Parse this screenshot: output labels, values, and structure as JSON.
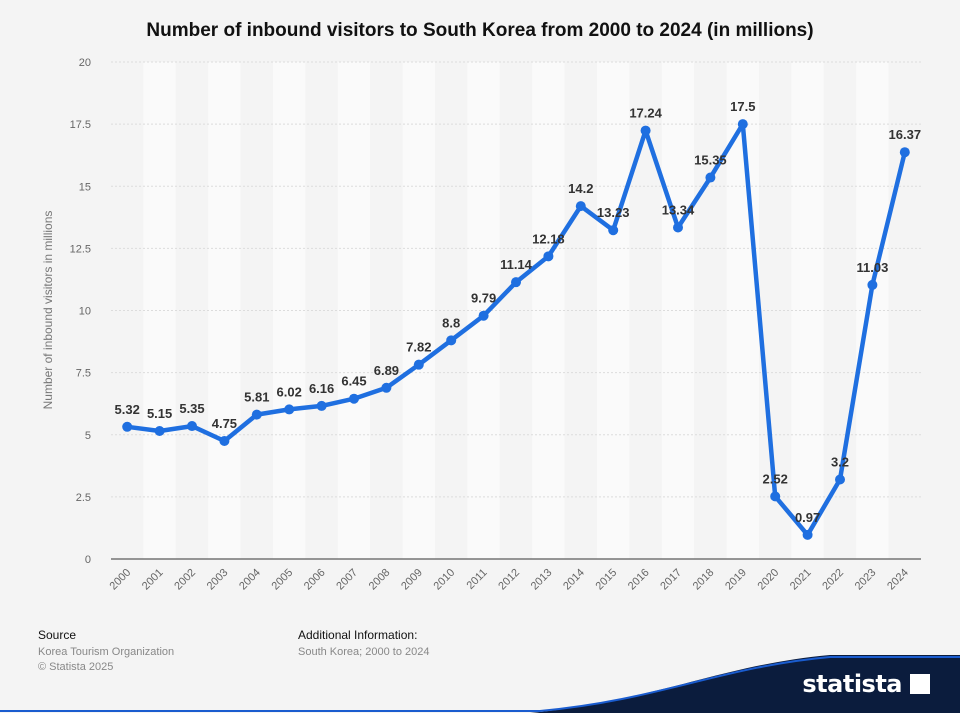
{
  "colors": {
    "line": "#1f6fe0",
    "navy": "#0b1c3d",
    "blue_edge": "#1a5ccf"
  },
  "title": "Number of inbound visitors to South Korea from 2000 to 2024 (in millions)",
  "footer": {
    "source_heading": "Source",
    "source_line1": "Korea Tourism Organization",
    "source_line2": "© Statista 2025",
    "info_heading": "Additional Information:",
    "info_line1": "South Korea; 2000 to 2024"
  },
  "logo": {
    "text": "statista"
  },
  "chart_data": {
    "type": "line",
    "ylabel": "Number of inbound visitors in millions",
    "ylim": [
      0,
      20
    ],
    "yticks": [
      "0",
      "2.5",
      "5",
      "7.5",
      "10",
      "12.5",
      "15",
      "17.5",
      "20"
    ],
    "grid": true,
    "categories": [
      "2000",
      "2001",
      "2002",
      "2003",
      "2004",
      "2005",
      "2006",
      "2007",
      "2008",
      "2009",
      "2010",
      "2011",
      "2012",
      "2013",
      "2014",
      "2015",
      "2016",
      "2017",
      "2018",
      "2019",
      "2020",
      "2021",
      "2022",
      "2023",
      "2024"
    ],
    "values": [
      5.32,
      5.15,
      5.35,
      4.75,
      5.81,
      6.02,
      6.16,
      6.45,
      6.89,
      7.82,
      8.8,
      9.79,
      11.14,
      12.18,
      14.2,
      13.23,
      17.24,
      13.34,
      15.35,
      17.5,
      2.52,
      0.97,
      3.2,
      11.03,
      16.37
    ],
    "labels": [
      "5.32",
      "5.15",
      "5.35",
      "4.75",
      "5.81",
      "6.02",
      "6.16",
      "6.45",
      "6.89",
      "7.82",
      "8.8",
      "9.79",
      "11.14",
      "12.18",
      "14.2",
      "13.23",
      "17.24",
      "13.34",
      "15.35",
      "17.5",
      "2.52",
      "0.97",
      "3.2",
      "11.03",
      "16.37"
    ]
  }
}
